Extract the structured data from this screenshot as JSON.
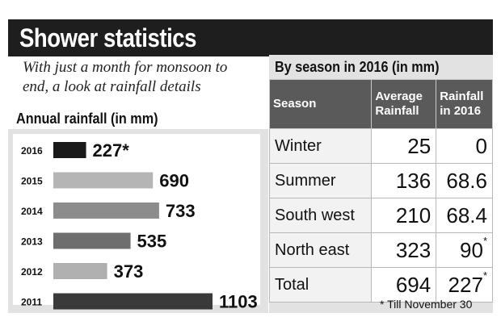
{
  "title": "Shower statistics",
  "subtitle": "With just a month for monsoon to end, a look at rainfall details",
  "chart_data": {
    "type": "bar",
    "orientation": "horizontal",
    "title": "Annual rainfall (in mm)",
    "categories": [
      "2016",
      "2015",
      "2014",
      "2013",
      "2012",
      "2011"
    ],
    "values": [
      227,
      690,
      733,
      535,
      373,
      1103
    ],
    "value_labels": [
      "227*",
      "690",
      "733",
      "535",
      "373",
      "1103"
    ],
    "bar_colors": [
      "#1a1a1a",
      "#b5b5b5",
      "#8c8c8c",
      "#6e6e6e",
      "#b0b0b0",
      "#3a3a3a"
    ],
    "xlim": [
      0,
      1103
    ],
    "xlabel": "",
    "ylabel": ""
  },
  "season_table": {
    "title": "By season in 2016 (in mm)",
    "headers": [
      "Season",
      "Average Rainfall",
      "Rainfall in 2016"
    ],
    "rows": [
      {
        "season": "Winter",
        "average": "25",
        "rainfall": "0",
        "mark": ""
      },
      {
        "season": "Summer",
        "average": "136",
        "rainfall": "68.6",
        "mark": ""
      },
      {
        "season": "South west",
        "average": "210",
        "rainfall": "68.4",
        "mark": ""
      },
      {
        "season": "North east",
        "average": "323",
        "rainfall": "90",
        "mark": "*"
      },
      {
        "season": "Total",
        "average": "694",
        "rainfall": "227",
        "mark": "*"
      }
    ],
    "footnote": "* Till November 30"
  },
  "colors": {
    "title_bg": "#1e1e1e",
    "panel_bg": "#e2e2e2",
    "header_bg": "#5a5a5a"
  }
}
